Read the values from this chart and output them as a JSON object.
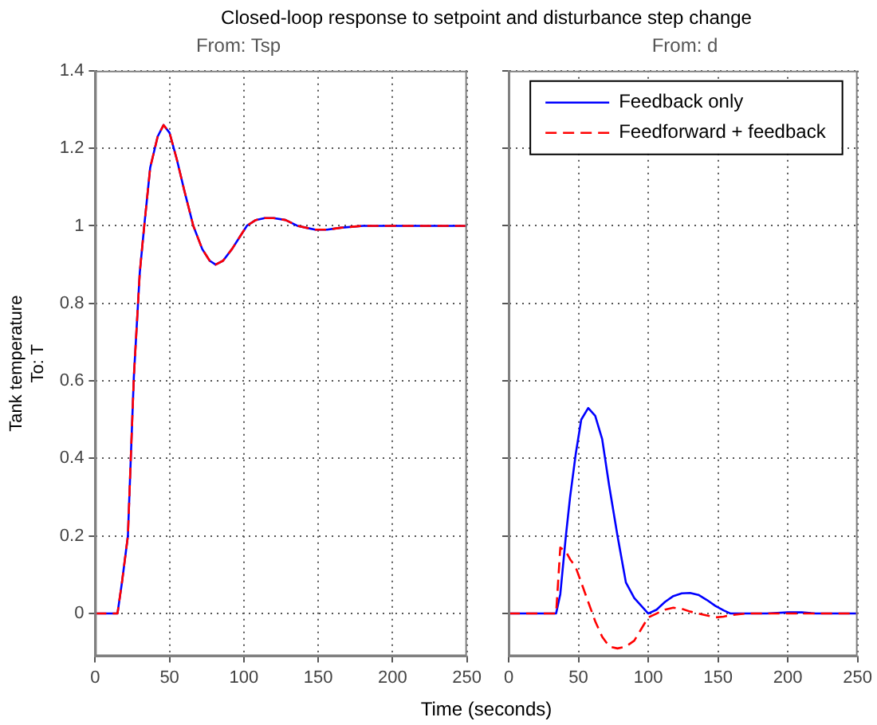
{
  "chart_data": [
    {
      "type": "line",
      "title": "Closed-loop response to setpoint and disturbance step change",
      "subtitle": "From: Tsp",
      "xlabel": "Time (seconds)",
      "ylabel": "Tank temperature\nTo: T",
      "x": [
        0,
        15,
        18,
        22,
        26,
        30,
        33,
        37,
        42,
        46,
        50,
        55,
        60,
        66,
        72,
        77,
        81,
        86,
        92,
        97,
        102,
        108,
        114,
        120,
        128,
        136,
        142,
        148,
        156,
        165,
        180,
        200,
        220,
        250
      ],
      "series": [
        {
          "color": "#0000ff",
          "line_style": "solid",
          "values": [
            0,
            0,
            0.08,
            0.2,
            0.61,
            0.88,
            1.0,
            1.15,
            1.23,
            1.26,
            1.24,
            1.17,
            1.09,
            1.0,
            0.94,
            0.91,
            0.9,
            0.91,
            0.94,
            0.97,
            1.0,
            1.015,
            1.02,
            1.02,
            1.015,
            1.0,
            0.995,
            0.99,
            0.99,
            0.995,
            1.0,
            1.0,
            1.0,
            1.0
          ]
        },
        {
          "color": "#ff0000",
          "line_style": "dashed",
          "values": [
            0,
            0,
            0.08,
            0.2,
            0.61,
            0.88,
            1.0,
            1.15,
            1.23,
            1.26,
            1.24,
            1.17,
            1.09,
            1.0,
            0.94,
            0.91,
            0.9,
            0.91,
            0.94,
            0.97,
            1.0,
            1.015,
            1.02,
            1.02,
            1.015,
            1.0,
            0.995,
            0.99,
            0.99,
            0.995,
            1.0,
            1.0,
            1.0,
            1.0
          ]
        }
      ],
      "xlim": [
        0,
        250
      ],
      "xticks": [
        0,
        50,
        100,
        150,
        200,
        250
      ],
      "ylim": [
        -0.11,
        1.4
      ],
      "yticks": [
        0,
        0.2,
        0.4,
        0.6,
        0.8,
        1,
        1.2,
        1.4
      ],
      "grid": true,
      "legend": false
    },
    {
      "type": "line",
      "subtitle": "From: d",
      "x": [
        0,
        34,
        37,
        41,
        44,
        48,
        52,
        57,
        62,
        67,
        72,
        78,
        84,
        90,
        95,
        100,
        106,
        112,
        118,
        124,
        130,
        136,
        142,
        148,
        154,
        159,
        170,
        185,
        200,
        210,
        220,
        250
      ],
      "series": [
        {
          "name": "Feedback only",
          "color": "#0000ff",
          "line_style": "solid",
          "values": [
            0,
            0,
            0.05,
            0.2,
            0.3,
            0.41,
            0.5,
            0.53,
            0.51,
            0.45,
            0.33,
            0.2,
            0.08,
            0.04,
            0.02,
            0,
            0.01,
            0.03,
            0.045,
            0.052,
            0.053,
            0.048,
            0.035,
            0.02,
            0.008,
            0,
            0,
            0,
            0.003,
            0.003,
            0,
            0
          ]
        },
        {
          "name": "Feedforward + feedback",
          "color": "#ff0000",
          "line_style": "dashed",
          "values": [
            0,
            0,
            0.17,
            0.16,
            0.14,
            0.12,
            0.08,
            0.03,
            -0.02,
            -0.06,
            -0.085,
            -0.09,
            -0.085,
            -0.07,
            -0.04,
            -0.01,
            0.0,
            0.01,
            0.015,
            0.012,
            0.005,
            0,
            -0.005,
            -0.01,
            -0.008,
            -0.004,
            0,
            0,
            0,
            0,
            0,
            0
          ]
        }
      ],
      "xlim": [
        0,
        250
      ],
      "xticks": [
        0,
        50,
        100,
        150,
        200,
        250
      ],
      "ylim": [
        -0.11,
        1.4
      ],
      "yticks": [
        0,
        0.2,
        0.4,
        0.6,
        0.8,
        1,
        1.2,
        1.4
      ],
      "tick_labels": "x",
      "grid": true,
      "legend": "top right"
    }
  ]
}
